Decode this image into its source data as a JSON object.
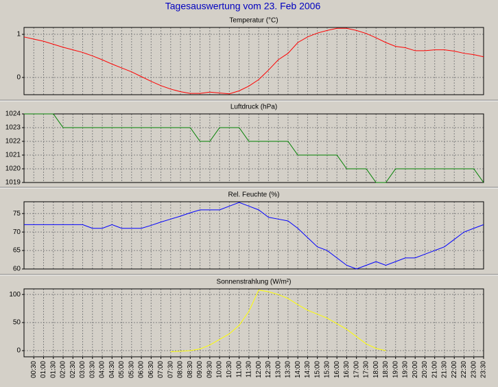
{
  "title": "Tagesauswertung vom 23. Feb 2006",
  "chart_data": [
    {
      "type": "line",
      "title": "Temperatur (°C)",
      "color": "#ff0000",
      "grid": true,
      "ylim": [
        -0.4,
        1.16
      ],
      "yticks": [
        0,
        1
      ],
      "values": [
        0.94,
        0.89,
        0.84,
        0.77,
        0.7,
        0.64,
        0.58,
        0.5,
        0.41,
        0.31,
        0.22,
        0.13,
        0.02,
        -0.09,
        -0.19,
        -0.27,
        -0.33,
        -0.37,
        -0.37,
        -0.34,
        -0.36,
        -0.38,
        -0.31,
        -0.2,
        -0.05,
        0.17,
        0.41,
        0.56,
        0.81,
        0.94,
        1.03,
        1.09,
        1.14,
        1.14,
        1.09,
        1.02,
        0.92,
        0.81,
        0.72,
        0.69,
        0.62,
        0.62,
        0.64,
        0.64,
        0.61,
        0.56,
        0.53,
        0.48
      ]
    },
    {
      "type": "line",
      "title": "Luftdruck (hPa)",
      "color": "#008000",
      "grid": true,
      "ylim": [
        1019,
        1024
      ],
      "yticks": [
        1019,
        1020,
        1021,
        1022,
        1023,
        1024
      ],
      "values": [
        1024,
        1024,
        1024,
        1024,
        1023,
        1023,
        1023,
        1023,
        1023,
        1023,
        1023,
        1023,
        1023,
        1023,
        1023,
        1023,
        1023,
        1023,
        1022,
        1022,
        1023,
        1023,
        1023,
        1022,
        1022,
        1022,
        1022,
        1022,
        1021,
        1021,
        1021,
        1021,
        1021,
        1020,
        1020,
        1020,
        1019,
        1019,
        1020,
        1020,
        1020,
        1020,
        1020,
        1020,
        1020,
        1020,
        1020,
        1019
      ]
    },
    {
      "type": "line",
      "title": "Rel. Feuchte (%)",
      "color": "#0000ff",
      "grid": true,
      "ylim": [
        60,
        78.2
      ],
      "yticks": [
        60,
        65,
        70,
        75
      ],
      "values": [
        72,
        72,
        72,
        72,
        72,
        72,
        72,
        71,
        71,
        72,
        71,
        71,
        71,
        71.8,
        72.7,
        73.5,
        74.3,
        75.2,
        76,
        76,
        76,
        77,
        78,
        77,
        76,
        74,
        73.5,
        73,
        71,
        68.5,
        66,
        65,
        63,
        61,
        60,
        61,
        62,
        61,
        62,
        63,
        63,
        64,
        65,
        66,
        68,
        70,
        71,
        72
      ]
    },
    {
      "type": "line",
      "title": "Sonnenstrahlung (W/m²)",
      "color": "#ffff00",
      "grid": true,
      "ylim": [
        -11,
        110
      ],
      "yticks": [
        0,
        50,
        100
      ],
      "categories": [
        null,
        "00:30",
        "01:00",
        "01:30",
        "02:00",
        "02:30",
        "03:00",
        "03:30",
        "04:00",
        "04:30",
        "05:00",
        "05:30",
        "06:00",
        "06:30",
        "07:00",
        "07:30",
        "08:00",
        "08:30",
        "09:00",
        "09:30",
        "10:00",
        "10:30",
        "11:00",
        "11:30",
        "12:00",
        "12:30",
        "13:00",
        "13:30",
        "14:00",
        "14:30",
        "15:00",
        "15:30",
        "16:00",
        "16:30",
        "17:00",
        "17:30",
        "18:00",
        "18:30",
        "19:00",
        "19:30",
        "20:00",
        "20:30",
        "21:00",
        "21:30",
        "22:00",
        "22:30",
        "23:00",
        "23:30"
      ],
      "values": [
        null,
        null,
        null,
        null,
        null,
        null,
        null,
        null,
        null,
        null,
        null,
        null,
        null,
        null,
        null,
        -2,
        -1,
        0,
        3,
        10,
        20,
        30,
        45,
        70,
        108,
        105,
        100,
        93,
        82,
        72,
        65,
        58,
        48,
        38,
        25,
        12,
        4,
        0,
        null,
        null,
        null,
        null,
        null,
        null,
        null,
        null,
        null,
        null
      ]
    }
  ]
}
